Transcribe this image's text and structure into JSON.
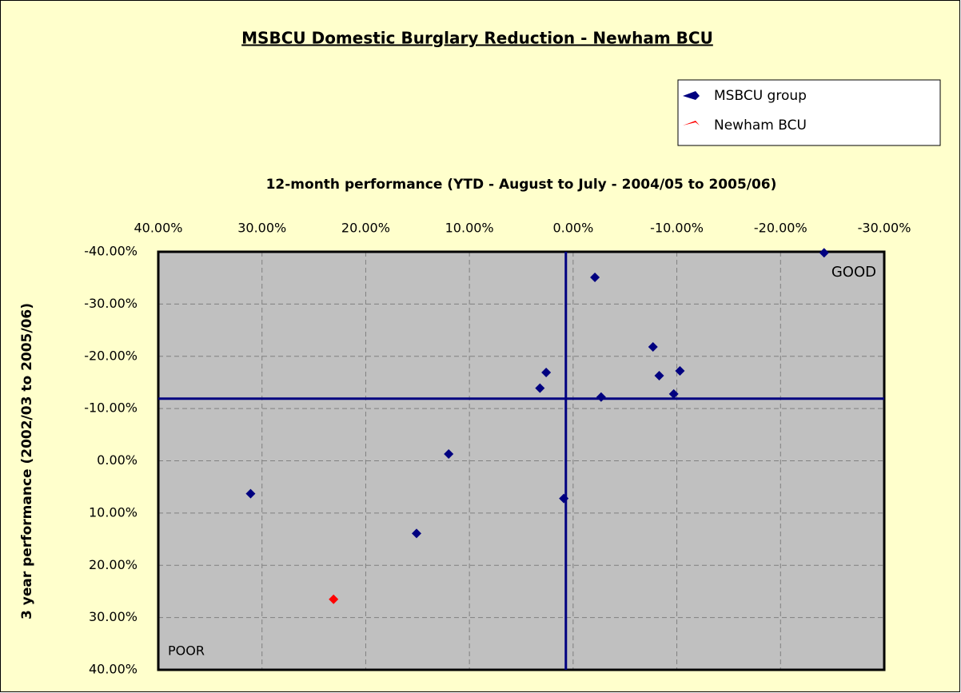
{
  "chart_data": {
    "type": "scatter",
    "title": "MSBCU Domestic Burglary Reduction - Newham BCU",
    "xlabel": "12-month performance (YTD - August to July - 2004/05 to 2005/06)",
    "ylabel": "3 year performance (2002/03 to 2005/06)",
    "xlim": [
      40,
      -30
    ],
    "ylim": [
      40,
      -40
    ],
    "xticks": [
      {
        "value": 40,
        "label": "40.00%"
      },
      {
        "value": 30,
        "label": "30.00%"
      },
      {
        "value": 20,
        "label": "20.00%"
      },
      {
        "value": 10,
        "label": "10.00%"
      },
      {
        "value": 0,
        "label": "0.00%"
      },
      {
        "value": -10,
        "label": "-10.00%"
      },
      {
        "value": -20,
        "label": "-20.00%"
      },
      {
        "value": -30,
        "label": "-30.00%"
      }
    ],
    "yticks": [
      {
        "value": -40,
        "label": "-40.00%"
      },
      {
        "value": -30,
        "label": "-30.00%"
      },
      {
        "value": -20,
        "label": "-20.00%"
      },
      {
        "value": -10,
        "label": "-10.00%"
      },
      {
        "value": 0,
        "label": "0.00%"
      },
      {
        "value": 10,
        "label": "10.00%"
      },
      {
        "value": 20,
        "label": "20.00%"
      },
      {
        "value": 30,
        "label": "30.00%"
      },
      {
        "value": 40,
        "label": "40.00%"
      }
    ],
    "grid": true,
    "legend": "upper right",
    "series": [
      {
        "name": "MSBCU group",
        "color": "#000080",
        "x": [
          -24.2,
          -2.1,
          -7.7,
          2.6,
          -8.3,
          -10.3,
          3.2,
          -9.7,
          -2.7,
          12.0,
          31.1,
          0.9,
          15.1
        ],
        "values": [
          -39.8,
          -35.1,
          -21.8,
          -16.9,
          -16.3,
          -17.2,
          -13.9,
          -12.8,
          -12.2,
          -1.3,
          6.3,
          7.2,
          13.9
        ]
      },
      {
        "name": "Newham BCU",
        "color": "#ff0000",
        "x": [
          23.1
        ],
        "values": [
          26.5
        ]
      }
    ],
    "reference_lines": {
      "x": 0.7,
      "y": -11.9,
      "color": "#000080"
    },
    "annotations": [
      "GOOD",
      "POOR"
    ]
  }
}
